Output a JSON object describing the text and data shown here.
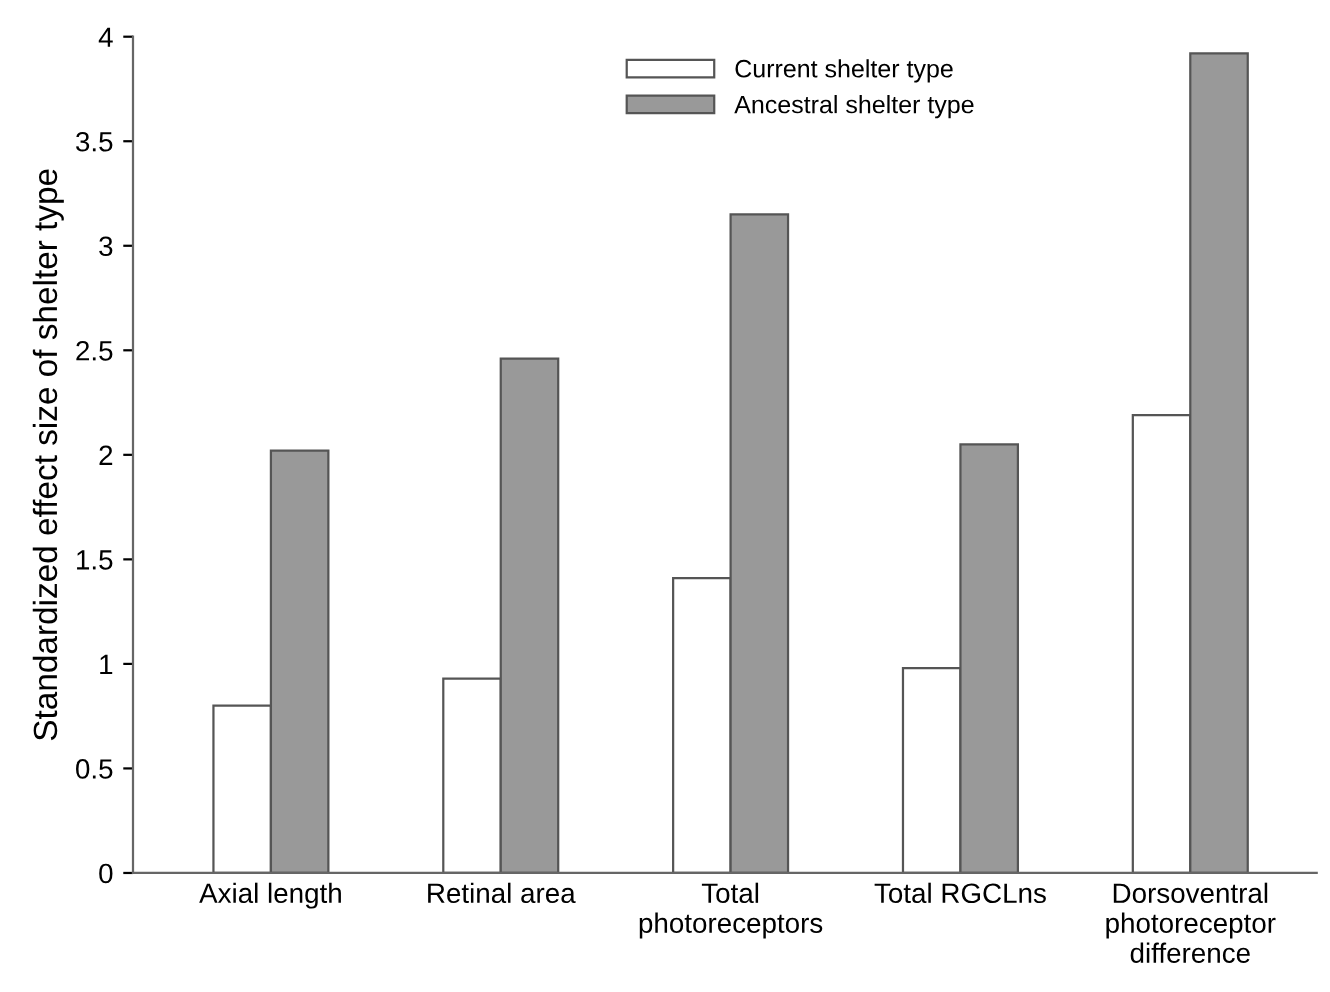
{
  "chart_data": {
    "type": "bar",
    "ylabel": "Standardized effect size of shelter type",
    "categories": [
      "Axial length",
      "Retinal area",
      "Total\nphotoreceptors",
      "Total RGCLns",
      "Dorsoventral\nphotoreceptor\ndifference"
    ],
    "series": [
      {
        "name": "Current shelter type",
        "color": "#ffffff",
        "values": [
          0.8,
          0.93,
          1.41,
          0.98,
          2.19
        ]
      },
      {
        "name": "Ancestral shelter type",
        "color": "#999999",
        "values": [
          2.02,
          2.46,
          3.15,
          2.05,
          3.92
        ]
      }
    ],
    "ylim": [
      0,
      4
    ],
    "yticks": [
      0,
      0.5,
      1,
      1.5,
      2,
      2.5,
      3,
      3.5,
      4
    ],
    "grid": false,
    "legend": "top right"
  }
}
